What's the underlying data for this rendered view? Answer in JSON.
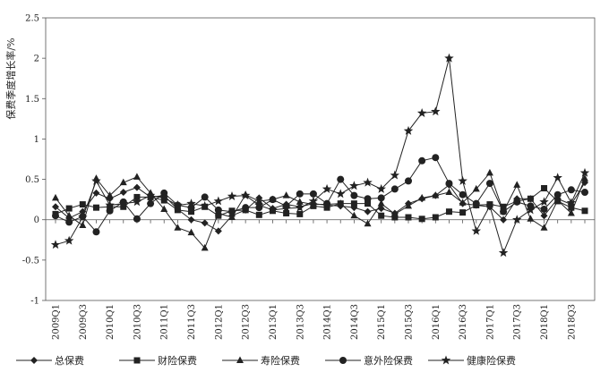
{
  "chart_data": {
    "type": "line",
    "title": "",
    "ylabel": "保费季度增长率/%",
    "xlabel": "",
    "ylim": [
      -1,
      2.5
    ],
    "yticks": [
      -1,
      -0.5,
      0,
      0.5,
      1,
      1.5,
      2,
      2.5
    ],
    "ytick_labels": [
      "-1",
      "-0.5",
      "0",
      "0.5",
      "1",
      "1.5",
      "2",
      "2.5"
    ],
    "grid": false,
    "legend_position": "bottom",
    "categories": [
      "2009Q1",
      "2009Q2",
      "2009Q3",
      "2009Q4",
      "2010Q1",
      "2010Q2",
      "2010Q3",
      "2010Q4",
      "2011Q1",
      "2011Q2",
      "2011Q3",
      "2011Q4",
      "2012Q1",
      "2012Q2",
      "2012Q3",
      "2012Q4",
      "2013Q1",
      "2013Q2",
      "2013Q3",
      "2013Q4",
      "2014Q1",
      "2014Q2",
      "2014Q3",
      "2014Q4",
      "2015Q1",
      "2015Q2",
      "2015Q3",
      "2015Q4",
      "2016Q1",
      "2016Q2",
      "2016Q3",
      "2016Q4",
      "2017Q1",
      "2017Q2",
      "2017Q3",
      "2017Q4",
      "2018Q1",
      "2018Q2",
      "2018Q3",
      "2018Q4"
    ],
    "tick_labels": [
      "2009Q1",
      "2009Q3",
      "2010Q1",
      "2010Q3",
      "2011Q1",
      "2011Q3",
      "2012Q1",
      "2012Q3",
      "2013Q1",
      "2013Q3",
      "2014Q1",
      "2014Q3",
      "2015Q1",
      "2015Q3",
      "2016Q1",
      "2016Q3",
      "2017Q1",
      "2017Q3",
      "2018Q1",
      "2018Q3"
    ],
    "series": [
      {
        "name": "总保费",
        "marker": "diamond",
        "values": [
          0.16,
          0.02,
          0.1,
          0.33,
          0.26,
          0.34,
          0.4,
          0.28,
          0.3,
          0.13,
          0.0,
          -0.04,
          -0.14,
          0.05,
          0.12,
          0.27,
          0.14,
          0.19,
          0.16,
          0.2,
          0.18,
          0.17,
          0.15,
          0.1,
          0.14,
          0.08,
          0.2,
          0.26,
          0.3,
          0.43,
          0.2,
          0.18,
          0.16,
          0.0,
          0.26,
          0.26,
          0.05,
          0.26,
          0.19,
          0.46
        ]
      },
      {
        "name": "财险保费",
        "marker": "square",
        "values": [
          0.07,
          0.14,
          0.19,
          0.15,
          0.16,
          0.16,
          0.28,
          0.28,
          0.24,
          0.12,
          0.1,
          0.16,
          0.05,
          0.11,
          0.12,
          0.06,
          0.11,
          0.08,
          0.07,
          0.17,
          0.15,
          0.2,
          0.2,
          0.2,
          0.05,
          0.03,
          0.03,
          0.01,
          0.03,
          0.1,
          0.09,
          0.18,
          0.19,
          0.16,
          0.23,
          0.26,
          0.39,
          0.23,
          0.15,
          0.11
        ]
      },
      {
        "name": "寿险保费",
        "marker": "triangle",
        "values": [
          0.27,
          0.05,
          -0.07,
          0.51,
          0.3,
          0.46,
          0.53,
          0.33,
          0.13,
          -0.1,
          -0.16,
          -0.35,
          0.08,
          0.03,
          0.31,
          0.23,
          0.25,
          0.3,
          0.22,
          0.19,
          0.19,
          0.2,
          0.05,
          -0.05,
          0.2,
          0.07,
          0.17,
          0.27,
          0.3,
          0.34,
          0.21,
          0.38,
          0.58,
          0.1,
          0.43,
          0.01,
          -0.1,
          0.24,
          0.08,
          0.51
        ]
      },
      {
        "name": "意外险保费",
        "marker": "circle",
        "values": [
          0.05,
          -0.03,
          0.04,
          -0.15,
          0.11,
          0.22,
          0.01,
          0.2,
          0.33,
          0.18,
          0.15,
          0.28,
          0.12,
          0.1,
          0.15,
          0.15,
          0.25,
          0.17,
          0.32,
          0.32,
          0.2,
          0.5,
          0.3,
          0.26,
          0.27,
          0.38,
          0.48,
          0.73,
          0.77,
          0.45,
          0.31,
          0.2,
          0.45,
          0.1,
          0.22,
          0.17,
          0.13,
          0.31,
          0.37,
          0.34
        ]
      },
      {
        "name": "健康险保费",
        "marker": "star",
        "values": [
          -0.31,
          -0.26,
          0.03,
          0.48,
          0.18,
          0.2,
          0.22,
          0.3,
          0.27,
          0.18,
          0.2,
          0.17,
          0.23,
          0.29,
          0.3,
          0.18,
          0.12,
          0.14,
          0.15,
          0.23,
          0.38,
          0.32,
          0.42,
          0.46,
          0.38,
          0.55,
          1.1,
          1.32,
          1.34,
          2.0,
          0.48,
          -0.14,
          0.17,
          -0.41,
          0.0,
          0.12,
          0.22,
          0.52,
          0.21,
          0.58
        ]
      }
    ]
  }
}
